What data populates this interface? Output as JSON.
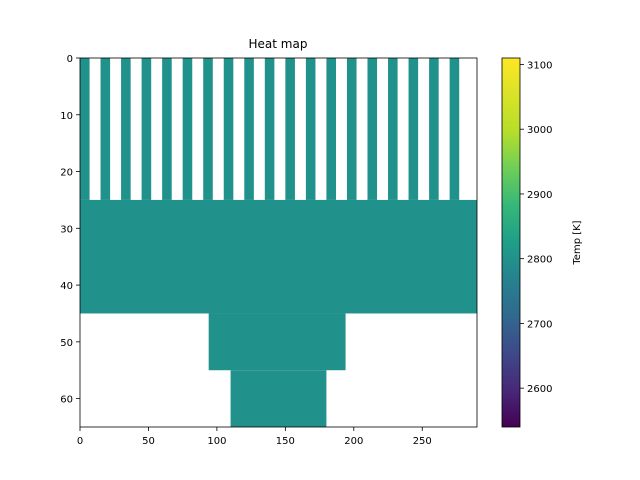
{
  "chart_data": {
    "type": "heatmap",
    "title": "Heat map",
    "xlim": [
      0,
      290
    ],
    "ylim": [
      0,
      65
    ],
    "y_inverted": true,
    "x_ticks": [
      "0",
      "50",
      "100",
      "150",
      "200",
      "250"
    ],
    "y_ticks": [
      "0",
      "10",
      "20",
      "30",
      "40",
      "50",
      "60"
    ],
    "colorbar": {
      "label": "Temp [K]",
      "colormap": "viridis",
      "range": [
        2540,
        3110
      ],
      "ticks": [
        "2600",
        "2700",
        "2800",
        "2900",
        "3000",
        "3100"
      ]
    },
    "cell_value": 2800,
    "cell_color": "#21918c",
    "regions": [
      {
        "name": "fins",
        "x": [
          0,
          290
        ],
        "y": [
          0,
          25
        ],
        "fins": 19,
        "fin_width": 7,
        "fin_pitch": 15
      },
      {
        "name": "base",
        "x": [
          0,
          290
        ],
        "y": [
          25,
          45
        ]
      },
      {
        "name": "stem-upper",
        "x": [
          94,
          194
        ],
        "y": [
          45,
          55
        ]
      },
      {
        "name": "stem-lower",
        "x": [
          110,
          180
        ],
        "y": [
          55,
          65
        ]
      }
    ]
  }
}
